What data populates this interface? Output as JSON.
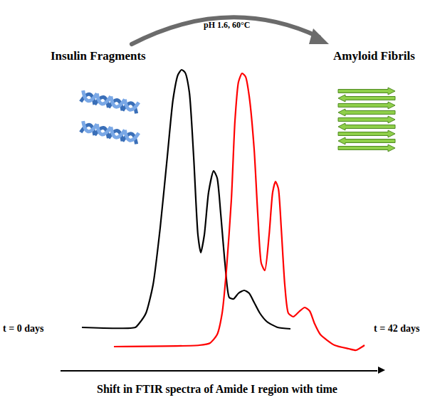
{
  "chart_data": {
    "type": "line",
    "x_label": "Shift in FTIR spectra of Amide I region with time",
    "annotations": [
      "pH 1.6, 60°C",
      "Insulin Fragments",
      "Amyloid Fibrils"
    ],
    "series": [
      {
        "name": "t = 0 days",
        "color": "#000000",
        "x": [
          115,
          190,
          195,
          205,
          215,
          225,
          235,
          243,
          250,
          255,
          260,
          266,
          272,
          278,
          282,
          287,
          293,
          300,
          305,
          310,
          316,
          322,
          328,
          335,
          343,
          350,
          357,
          365,
          375,
          390,
          408
        ],
        "values": [
          102,
          102,
          107,
          122,
          162,
          242,
          342,
          422,
          457,
          464,
          460,
          432,
          342,
          232,
          207,
          232,
          292,
          322,
          312,
          262,
          192,
          144,
          142,
          150,
          154,
          150,
          137,
          122,
          110,
          102,
          100
        ]
      },
      {
        "name": "t = 42 days",
        "color": "#ff0000",
        "x": [
          160,
          280,
          295,
          305,
          312,
          318,
          325,
          330,
          335,
          340,
          345,
          350,
          357,
          362,
          367,
          372,
          378,
          383,
          387,
          391,
          395,
          400,
          405,
          412,
          420,
          428,
          435,
          442,
          450,
          470,
          490,
          500,
          512
        ],
        "values": [
          75,
          77,
          80,
          92,
          122,
          182,
          282,
          392,
          447,
          459,
          454,
          427,
          352,
          262,
          192,
          182,
          232,
          292,
          307,
          297,
          242,
          162,
          122,
          117,
          124,
          130,
          125,
          107,
          92,
          77,
          72,
          70,
          77
        ]
      }
    ],
    "xlim": [
      85,
      530
    ],
    "ylim": [
      42,
      562
    ],
    "tick_labels": false,
    "grid": false
  }
}
